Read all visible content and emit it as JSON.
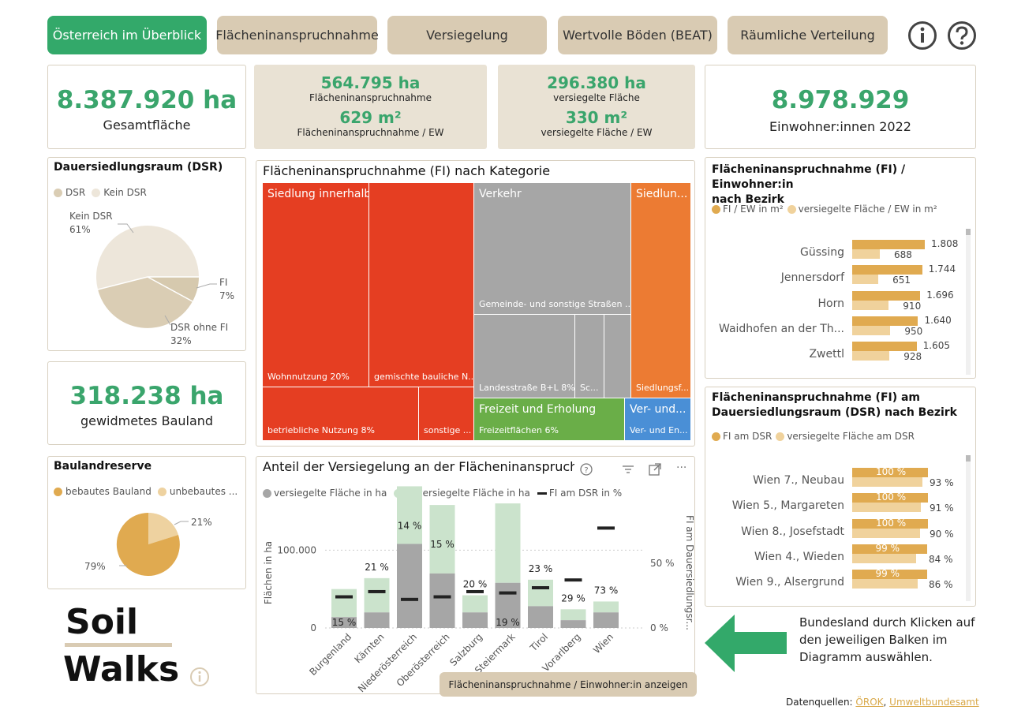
{
  "tabs": [
    "Österreich im Überblick",
    "Flächeninanspruchnahme",
    "Versiegelung",
    "Wertvolle Böden (BEAT)",
    "Räumliche Verteilung"
  ],
  "kpis": {
    "gesamt_value": "8.387.920 ha",
    "gesamt_label": "Gesamtfläche",
    "fi_value": "564.795 ha",
    "fi_label": "Flächeninanspruchnahme",
    "fi_ew_value": "629 m²",
    "fi_ew_label": "Flächeninanspruchnahme / EW",
    "vers_value": "296.380 ha",
    "vers_label": "versiegelte Fläche",
    "vers_ew_value": "330 m²",
    "vers_ew_label": "versiegelte Fläche / EW",
    "ew_value": "8.978.929",
    "ew_label": "Einwohner:innen 2022",
    "bauland_value": "318.238 ha",
    "bauland_label": "gewidmetes Bauland"
  },
  "dsr": {
    "title": "Dauersiedlungsraum (DSR)",
    "legend": [
      "DSR",
      "Kein DSR"
    ],
    "kein_label": "Kein DSR",
    "kein_pct": "61%",
    "fi_label": "FI",
    "fi_pct": "7%",
    "ohne_label": "DSR ohne FI",
    "ohne_pct": "32%",
    "colors": {
      "kein": "#ede6da",
      "ohne": "#dacdb4",
      "fi": "#d6c9ae"
    }
  },
  "reserve": {
    "title": "Baulandreserve",
    "legend": [
      "bebautes Bauland",
      "unbebautes ..."
    ],
    "pct_bebaut": "79%",
    "pct_unbebaut": "21%",
    "colors": {
      "bebaut": "#e0aa50",
      "unbebaut": "#eed2a0"
    }
  },
  "treemap": {
    "title": "Flächeninanspruchnahme (FI) nach Kategorie",
    "siedlung": "Siedlung innerhalb Baulandwidmung",
    "wohn": "Wohnnutzung 20%",
    "gemischt": "gemischte bauliche N...",
    "betrieb": "betriebliche Nutzung 8%",
    "sonstige": "sonstige ...",
    "verkehr": "Verkehr",
    "gemeinde": "Gemeinde- und sonstige Straßen ...",
    "landes": "Landesstraße B+L 8%",
    "sc": "Sc...",
    "siedl_aus": "Siedlun...",
    "siedl_f": "Siedlungsf...",
    "freizeit": "Freizeit und Erholung",
    "freizeit_sub": "Freizeitflächen 6%",
    "ver": "Ver- und...",
    "ver_sub": "Ver- und En..."
  },
  "versiegelung_chart": {
    "title": "Anteil der Versiegelung an der Flächeninanspruchnahme",
    "legend": [
      "versiegelte Fläche in ha",
      "unversiegelte Fläche in ha",
      "FI am DSR in %"
    ],
    "ylabel": "Flächen in ha",
    "y2label": "FI am Dauersiedlungsr...",
    "yticks": [
      "100.000",
      "0"
    ],
    "y2ticks": [
      "50 %",
      "0 %"
    ],
    "button": "Flächeninanspruchnahme / Einwohner:in anzeigen"
  },
  "chart_data": [
    {
      "type": "bar",
      "title": "Anteil der Versiegelung an der Flächeninanspruchnahme",
      "categories": [
        "Burgenland",
        "Kärnten",
        "Niederösterreich",
        "Oberösterreich",
        "Salzburg",
        "Steiermark",
        "Tirol",
        "Vorarlberg",
        "Wien"
      ],
      "series": [
        {
          "name": "versiegelte Fläche in ha",
          "values": [
            14000,
            20000,
            108000,
            70000,
            20000,
            58000,
            28000,
            10000,
            20000
          ]
        },
        {
          "name": "unversiegelte Fläche in ha",
          "values": [
            36000,
            44000,
            74000,
            88000,
            22000,
            102000,
            34000,
            14000,
            14000
          ]
        },
        {
          "name": "FI am DSR in %",
          "values": [
            24,
            28,
            22,
            24,
            28,
            27,
            31,
            37,
            77
          ]
        }
      ],
      "data_labels": [
        "15 %",
        "21 %",
        "14 %",
        "15 %",
        "20 %",
        "19 %",
        "23 %",
        "29 %",
        "73 %"
      ],
      "ylim": [
        0,
        150000
      ],
      "y2lim": [
        0,
        90
      ]
    },
    {
      "type": "bar",
      "title": "Flächeninanspruchnahme (FI) / Einwohner:in nach Bezirk",
      "categories": [
        "Güssing",
        "Jennersdorf",
        "Horn",
        "Waidhofen an der Th...",
        "Zwettl"
      ],
      "series": [
        {
          "name": "FI / EW in m²",
          "values": [
            1808,
            1744,
            1696,
            1640,
            1605
          ],
          "labels": [
            "1.808",
            "1.744",
            "1.696",
            "1.640",
            "1.605"
          ]
        },
        {
          "name": "versiegelte Fläche / EW in m²",
          "values": [
            688,
            651,
            910,
            950,
            928
          ],
          "labels": [
            "688",
            "651",
            "910",
            "950",
            "928"
          ]
        }
      ]
    },
    {
      "type": "bar",
      "title": "Flächeninanspruchnahme (FI) am Dauersiedlungsraum (DSR) nach Bezirk",
      "categories": [
        "Wien  7., Neubau",
        "Wien  5., Margareten",
        "Wien  8., Josefstadt",
        "Wien  4., Wieden",
        "Wien  9., Alsergrund"
      ],
      "series": [
        {
          "name": "FI am DSR",
          "values": [
            100,
            100,
            100,
            99,
            99
          ],
          "labels": [
            "100 %",
            "100 %",
            "100 %",
            "99 %",
            "99 %"
          ]
        },
        {
          "name": "versiegelte Fläche am DSR",
          "values": [
            93,
            91,
            90,
            84,
            86
          ],
          "labels": [
            "93 %",
            "91 %",
            "90 %",
            "84 %",
            "86 %"
          ]
        }
      ]
    }
  ],
  "fi_ew": {
    "title1": "Flächeninanspruchnahme (FI) / Einwohner:in",
    "title2": "nach Bezirk",
    "legend": [
      "FI / EW in m²",
      "versiegelte Fläche / EW in m²"
    ]
  },
  "fi_dsr": {
    "title1": "Flächeninanspruchnahme (FI) am",
    "title2": "Dauersiedlungsraum (DSR) nach Bezirk",
    "legend": [
      "FI am DSR",
      "versiegelte Fläche am DSR"
    ]
  },
  "hint": {
    "line1": "Bundesland durch Klicken auf",
    "line2": "den jeweiligen Balken im",
    "line3": "Diagramm auswählen."
  },
  "logo": {
    "line1": "Soil",
    "line2": "Walks"
  },
  "footer": {
    "prefix": "Datenquellen: ",
    "link1": "ÖROK",
    "sep": ", ",
    "link2": "Umweltbundesamt"
  },
  "colors": {
    "accent": "#33a96a",
    "tab": "#d9cbb3",
    "gold": "#e0aa50",
    "gold_light": "#f0d29c",
    "gray": "#a6a6a6",
    "green_light": "#cbe3cc"
  }
}
